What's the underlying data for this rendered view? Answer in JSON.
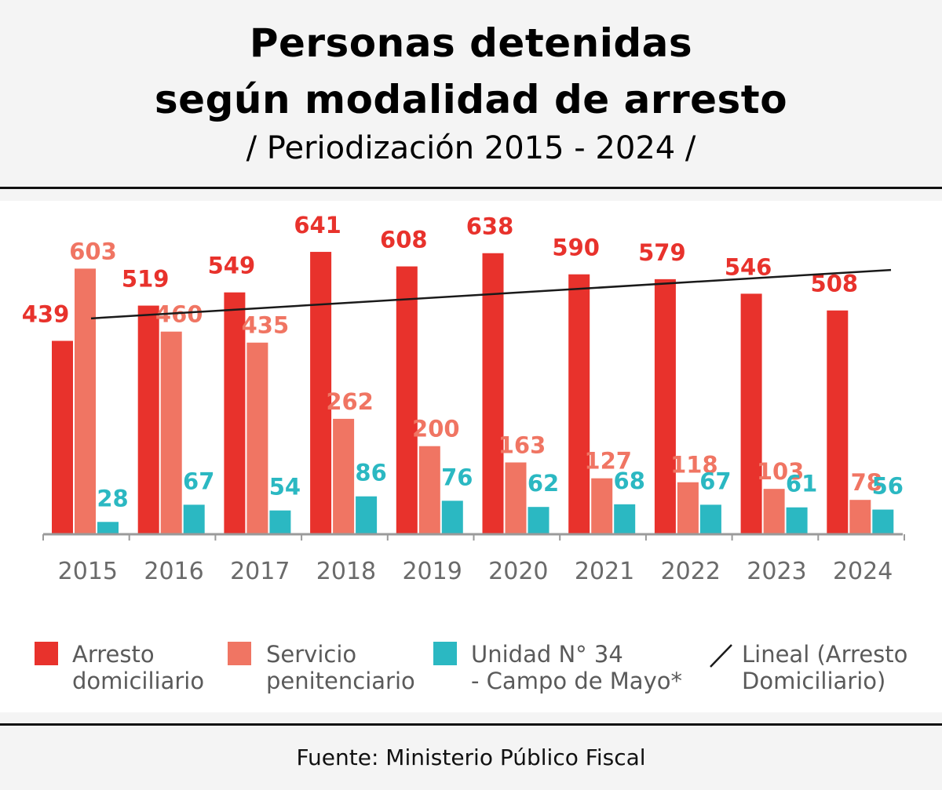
{
  "header": {
    "title_line1": "Personas detenidas",
    "title_line2": "según modalidad de arresto",
    "subtitle": "/ Periodización 2015 - 2024 /"
  },
  "footer": {
    "source": "Fuente: Ministerio Público Fiscal"
  },
  "colors": {
    "arresto": "#e8322c",
    "servicio": "#f07563",
    "unidad": "#2bb8c2",
    "trend": "#1a1a1a",
    "axis": "#9a9a9a"
  },
  "chart_data": {
    "type": "bar",
    "title": "Personas detenidas según modalidad de arresto",
    "subtitle": "/ Periodización 2015 - 2024 /",
    "categories": [
      "2015",
      "2016",
      "2017",
      "2018",
      "2019",
      "2020",
      "2021",
      "2022",
      "2023",
      "2024"
    ],
    "series": [
      {
        "name_line1": "Arresto",
        "name_line2": "domiciliario",
        "values": [
          439,
          519,
          549,
          641,
          608,
          638,
          590,
          579,
          546,
          508
        ]
      },
      {
        "name_line1": "Servicio",
        "name_line2": "penitenciario",
        "values": [
          603,
          460,
          435,
          262,
          200,
          163,
          127,
          118,
          103,
          78
        ]
      },
      {
        "name_line1": "Unidad N° 34",
        "name_line2": "- Campo de Mayo*",
        "values": [
          28,
          67,
          54,
          86,
          76,
          62,
          68,
          67,
          61,
          56
        ]
      }
    ],
    "trendline": {
      "name_line1": "Lineal (Arresto",
      "name_line2": "Domiciliario)",
      "series_index": 0,
      "type": "linear",
      "start_value": 490,
      "end_value": 600
    },
    "ylim": [
      0,
      650
    ],
    "grid": false,
    "legend": "bottom"
  }
}
